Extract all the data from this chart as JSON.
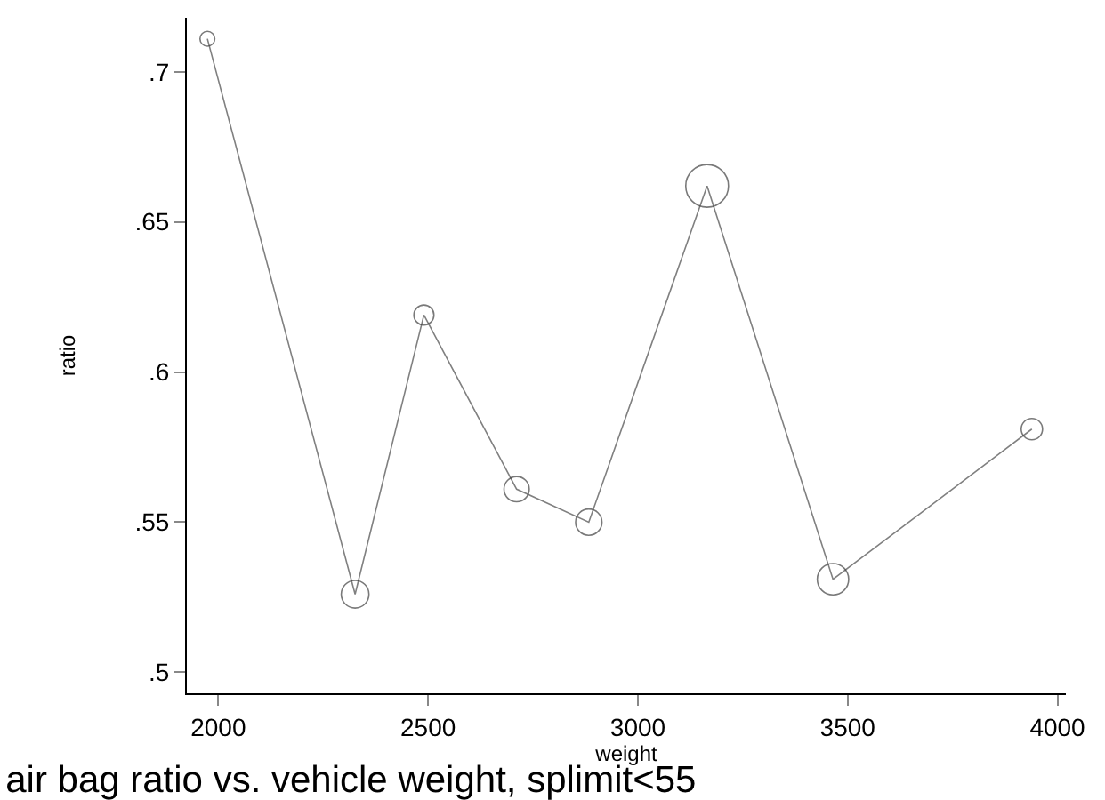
{
  "chart_data": {
    "type": "line",
    "title": "air bag ratio vs. vehicle weight, splimit<55",
    "xlabel": "weight",
    "ylabel": "ratio",
    "x": [
      1974,
      2326,
      2490,
      2711,
      2883,
      3165,
      3465,
      3939
    ],
    "series": [
      {
        "color": "#808080",
        "values": [
          0.711,
          0.526,
          0.619,
          0.561,
          0.55,
          0.662,
          0.531,
          0.581
        ]
      },
      {
        "type": "bubble",
        "color": "#404040",
        "values": [
          0.711,
          0.526,
          0.619,
          0.561,
          0.55,
          0.662,
          0.531,
          0.581
        ],
        "sizes": [
          0.12,
          0.42,
          0.22,
          0.35,
          0.38,
          1,
          0.54,
          0.25
        ]
      }
    ],
    "xlim": [
      1925,
      4020
    ],
    "xticks": [
      2000,
      2500,
      3000,
      3500,
      4000
    ],
    "ylim": [
      0.493,
      0.718
    ],
    "yticks": [
      {
        "value": 0.5,
        "label": ".5"
      },
      {
        "value": 0.55,
        "label": ".55"
      },
      {
        "value": 0.6,
        "label": ".6"
      },
      {
        "value": 0.65,
        "label": ".65"
      },
      {
        "value": 0.7,
        "label": ".7"
      }
    ]
  }
}
